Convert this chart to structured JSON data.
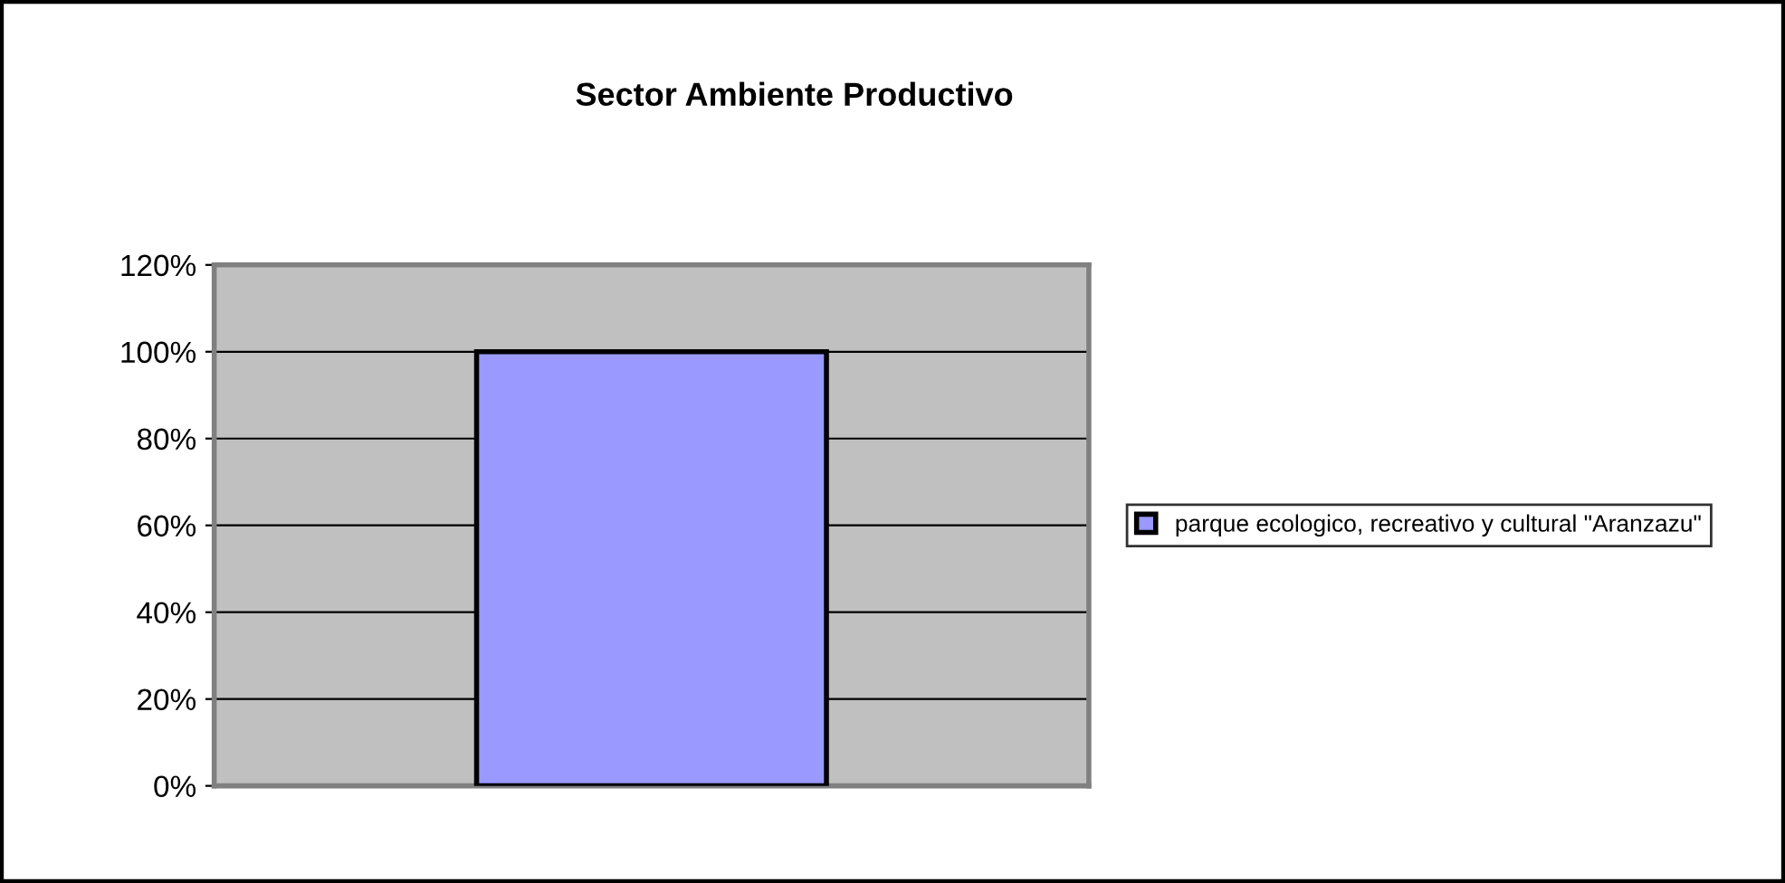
{
  "chart_data": {
    "type": "bar",
    "title": "Sector Ambiente Productivo",
    "categories": [
      null
    ],
    "series": [
      {
        "name": "parque ecologico, recreativo y cultural \"Aranzazu\"",
        "color": "#9999ff",
        "values": [
          100
        ]
      }
    ],
    "ylim": [
      0,
      120
    ],
    "yticks": [
      {
        "value": 0,
        "label": "0%"
      },
      {
        "value": 20,
        "label": "20%"
      },
      {
        "value": 40,
        "label": "40%"
      },
      {
        "value": 60,
        "label": "60%"
      },
      {
        "value": 80,
        "label": "80%"
      },
      {
        "value": 100,
        "label": "100%"
      },
      {
        "value": 120,
        "label": "120%"
      }
    ],
    "grid": "y",
    "legend": "right"
  }
}
